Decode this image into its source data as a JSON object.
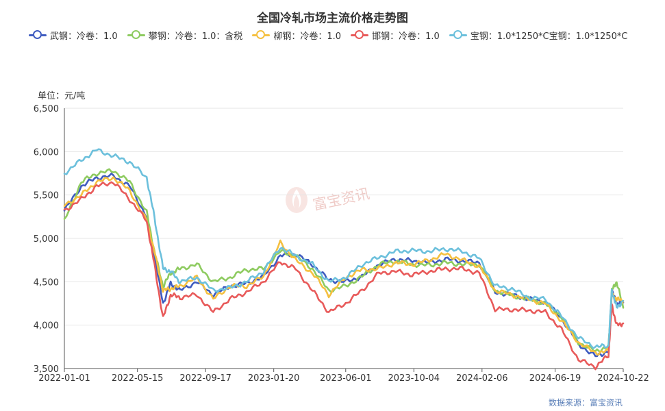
{
  "title": "全国冷轧市场主流价格走势图",
  "unit_label": "单位：元/吨",
  "source_label": "数据来源：富宝资讯",
  "watermark": "富宝资讯",
  "legend": [
    {
      "label": "武钢：冷卷：1.0",
      "color": "#3f5cc0"
    },
    {
      "label": "攀钢：冷卷：1.0：含税",
      "color": "#8ecb60"
    },
    {
      "label": "柳钢：冷卷：1.0",
      "color": "#f5c040"
    },
    {
      "label": "邯钢：冷卷：1.0",
      "color": "#e85a5a"
    },
    {
      "label": "宝钢：1.0*1250*C宝钢：1.0*1250*C",
      "color": "#6cc0dc"
    }
  ],
  "chart_data": {
    "type": "line",
    "title": "全国冷轧市场主流价格走势图",
    "ylabel": "单位：元/吨",
    "ylim": [
      3500,
      6500
    ],
    "yticks": [
      "3,500",
      "4,000",
      "4,500",
      "5,000",
      "5,500",
      "6,000",
      "6,500"
    ],
    "ytick_values": [
      3500,
      4000,
      4500,
      5000,
      5500,
      6000,
      6500
    ],
    "xlim": [
      "2022-01-01",
      "2024-10-22"
    ],
    "xticks": [
      "2022-01-01",
      "2022-05-15",
      "2022-09-17",
      "2023-01-20",
      "2023-06-01",
      "2023-10-04",
      "2024-02-06",
      "2024-06-19",
      "2024-10-22"
    ],
    "grid": true,
    "legend_position": "top",
    "x": [
      "2022-01-01",
      "2022-02-01",
      "2022-03-01",
      "2022-04-01",
      "2022-05-01",
      "2022-06-01",
      "2022-06-15",
      "2022-07-01",
      "2022-07-15",
      "2022-08-01",
      "2022-09-01",
      "2022-10-01",
      "2022-11-01",
      "2022-12-01",
      "2023-01-01",
      "2023-02-01",
      "2023-03-01",
      "2023-04-01",
      "2023-05-01",
      "2023-06-01",
      "2023-07-01",
      "2023-08-01",
      "2023-09-01",
      "2023-10-01",
      "2023-11-01",
      "2023-12-01",
      "2024-01-01",
      "2024-02-01",
      "2024-03-01",
      "2024-04-01",
      "2024-05-01",
      "2024-06-01",
      "2024-07-01",
      "2024-08-01",
      "2024-09-01",
      "2024-09-25",
      "2024-10-01",
      "2024-10-10",
      "2024-10-22"
    ],
    "series": [
      {
        "name": "武钢：冷卷：1.0",
        "color": "#3f5cc0",
        "values": [
          5320,
          5600,
          5700,
          5720,
          5600,
          5250,
          4800,
          4250,
          4480,
          4400,
          4500,
          4350,
          4450,
          4480,
          4560,
          4800,
          4820,
          4700,
          4520,
          4500,
          4560,
          4700,
          4760,
          4740,
          4720,
          4760,
          4740,
          4720,
          4380,
          4350,
          4300,
          4270,
          4080,
          3780,
          3640,
          3700,
          4400,
          4250,
          4260
        ]
      },
      {
        "name": "攀钢：冷卷：1.0：含税",
        "color": "#8ecb60",
        "values": [
          5200,
          5650,
          5750,
          5780,
          5650,
          5300,
          4850,
          4450,
          4600,
          4650,
          4700,
          4500,
          4550,
          4640,
          4650,
          4850,
          4800,
          4650,
          4400,
          4450,
          4560,
          4700,
          4740,
          4700,
          4690,
          4720,
          4700,
          4700,
          4400,
          4340,
          4300,
          4250,
          4100,
          3800,
          3700,
          3750,
          4400,
          4500,
          4200
        ]
      },
      {
        "name": "柳钢：冷卷：1.0",
        "color": "#f5c040",
        "values": [
          5380,
          5500,
          5650,
          5700,
          5550,
          5200,
          4850,
          4400,
          4420,
          4450,
          4550,
          4300,
          4450,
          4450,
          4560,
          4950,
          4750,
          4600,
          4350,
          4550,
          4640,
          4650,
          4720,
          4700,
          4750,
          4820,
          4750,
          4680,
          4400,
          4350,
          4300,
          4250,
          4050,
          3800,
          3680,
          3700,
          4350,
          4300,
          4280
        ]
      },
      {
        "name": "邯钢：冷卷：1.0",
        "color": "#e85a5a",
        "values": [
          5320,
          5450,
          5600,
          5650,
          5450,
          5200,
          4700,
          4080,
          4350,
          4320,
          4350,
          4150,
          4300,
          4380,
          4500,
          4730,
          4650,
          4400,
          4150,
          4250,
          4400,
          4600,
          4620,
          4580,
          4620,
          4650,
          4650,
          4600,
          4180,
          4180,
          4170,
          4150,
          3950,
          3600,
          3520,
          3650,
          4230,
          4000,
          4020
        ]
      },
      {
        "name": "宝钢：1.0*1250*C宝钢：1.0*1250*C",
        "color": "#6cc0dc",
        "values": [
          5750,
          5900,
          6020,
          5950,
          5880,
          5700,
          5250,
          4650,
          4620,
          4500,
          4550,
          4400,
          4430,
          4500,
          4620,
          4900,
          4800,
          4700,
          4500,
          4550,
          4700,
          4780,
          4850,
          4860,
          4850,
          4880,
          4850,
          4770,
          4450,
          4420,
          4320,
          4300,
          4100,
          3850,
          3750,
          3760,
          4400,
          4200,
          4280
        ]
      }
    ]
  }
}
